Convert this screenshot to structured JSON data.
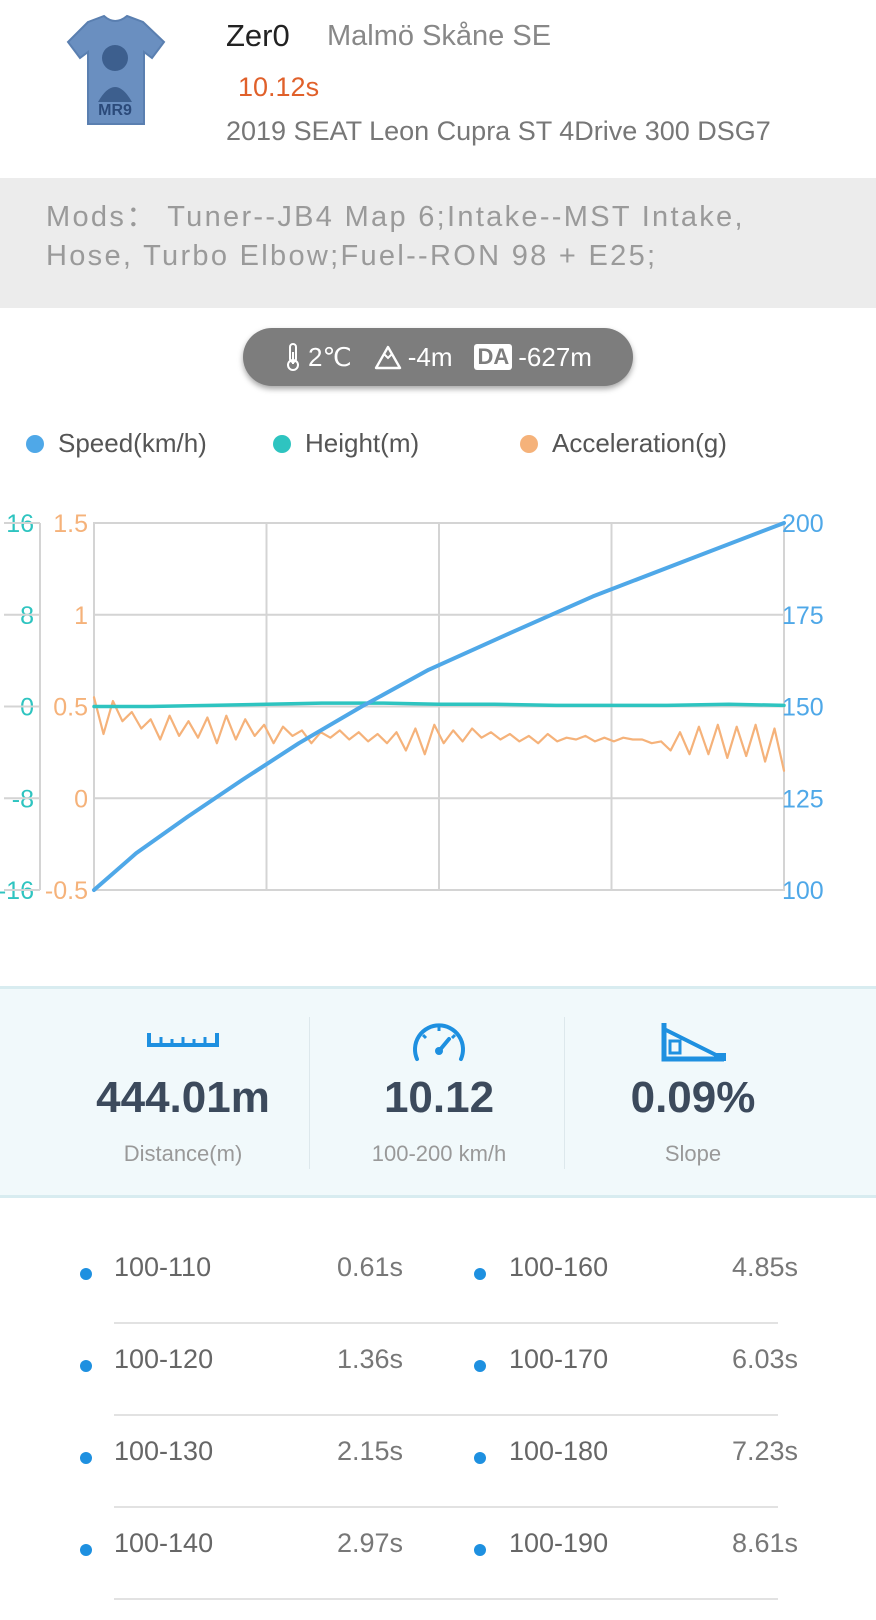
{
  "header": {
    "avatar_icon": "tshirt-avatar-icon",
    "avatar_text": "MR9",
    "user_name": "Zer0",
    "location": "Malmö Skåne SE",
    "time": "10.12s",
    "car": "2019 SEAT Leon Cupra ST 4Drive 300 DSG7"
  },
  "mods": {
    "line1": "Mods：  Tuner--JB4 Map 6;Intake--MST Intake,",
    "line2": "Hose, Turbo Elbow;Fuel--RON 98 + E25;"
  },
  "conditions": {
    "temperature": "2℃",
    "temperature_icon": "thermometer-icon",
    "altitude": "-4m",
    "altitude_icon": "mountain-icon",
    "da_badge": "DA",
    "density_altitude": "-627m"
  },
  "legend": [
    {
      "label": "Speed(km/h)",
      "color": "#4fa8e8"
    },
    {
      "label": "Height(m)",
      "color": "#2ec4c0"
    },
    {
      "label": "Acceleration(g)",
      "color": "#f5b27a"
    }
  ],
  "chart_data": {
    "type": "line",
    "x_ticks": 4,
    "height_axis": {
      "ticks": [
        "16",
        "8",
        "0",
        "-8",
        "-16"
      ],
      "range": [
        -16,
        16
      ],
      "color": "#2ec4c0"
    },
    "accel_axis": {
      "ticks": [
        "1.5",
        "1",
        "0.5",
        "0",
        "-0.5"
      ],
      "range": [
        -0.5,
        1.5
      ],
      "color": "#f5b27a"
    },
    "speed_axis": {
      "ticks": [
        "200",
        "175",
        "150",
        "125",
        "100"
      ],
      "range": [
        100,
        200
      ],
      "color": "#4fa8e8"
    },
    "series": [
      {
        "name": "Speed(km/h)",
        "color": "#4fa8e8",
        "values": [
          100,
          110,
          120,
          130,
          140,
          150,
          160,
          170,
          180,
          190,
          200
        ],
        "x": [
          0,
          0.061,
          0.136,
          0.215,
          0.297,
          0.388,
          0.485,
          0.603,
          0.723,
          0.861,
          1.0
        ]
      },
      {
        "name": "Height(m)",
        "color": "#2ec4c0",
        "values": [
          0,
          0,
          0.1,
          0.2,
          0.3,
          0.3,
          0.2,
          0.2,
          0.1,
          0.1,
          0.1,
          0.2,
          0.1
        ],
        "x": [
          0,
          0.08,
          0.17,
          0.25,
          0.33,
          0.42,
          0.5,
          0.58,
          0.67,
          0.75,
          0.83,
          0.92,
          1.0
        ]
      },
      {
        "name": "Acceleration(g)",
        "color": "#f5b27a",
        "values": [
          0.55,
          0.35,
          0.53,
          0.42,
          0.47,
          0.38,
          0.43,
          0.32,
          0.45,
          0.34,
          0.42,
          0.33,
          0.44,
          0.3,
          0.45,
          0.32,
          0.43,
          0.34,
          0.4,
          0.3,
          0.39,
          0.34,
          0.37,
          0.3,
          0.36,
          0.33,
          0.37,
          0.32,
          0.36,
          0.31,
          0.35,
          0.3,
          0.36,
          0.26,
          0.38,
          0.24,
          0.4,
          0.3,
          0.37,
          0.31,
          0.38,
          0.33,
          0.36,
          0.32,
          0.35,
          0.31,
          0.34,
          0.3,
          0.35,
          0.31,
          0.33,
          0.32,
          0.34,
          0.31,
          0.33,
          0.31,
          0.33,
          0.32,
          0.32,
          0.3,
          0.31,
          0.26,
          0.36,
          0.24,
          0.39,
          0.24,
          0.4,
          0.22,
          0.39,
          0.23,
          0.4,
          0.2,
          0.38,
          0.15
        ]
      }
    ]
  },
  "stats": [
    {
      "icon": "ruler-icon",
      "value": "444.01m",
      "label": "Distance(m)"
    },
    {
      "icon": "speedometer-icon",
      "value": "10.12",
      "label": "100-200 km/h"
    },
    {
      "icon": "slope-icon",
      "value": "0.09%",
      "label": "Slope"
    }
  ],
  "splits": [
    {
      "left": {
        "range": "100-110",
        "time": "0.61s"
      },
      "right": {
        "range": "100-160",
        "time": "4.85s"
      }
    },
    {
      "left": {
        "range": "100-120",
        "time": "1.36s"
      },
      "right": {
        "range": "100-170",
        "time": "6.03s"
      }
    },
    {
      "left": {
        "range": "100-130",
        "time": "2.15s"
      },
      "right": {
        "range": "100-180",
        "time": "7.23s"
      }
    },
    {
      "left": {
        "range": "100-140",
        "time": "2.97s"
      },
      "right": {
        "range": "100-190",
        "time": "8.61s"
      }
    }
  ]
}
